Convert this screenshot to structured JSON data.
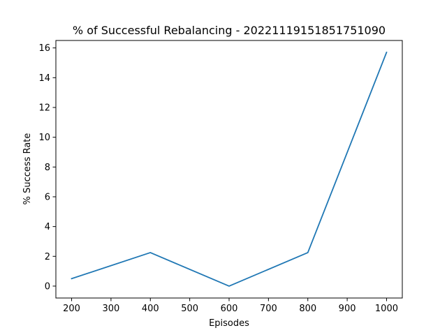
{
  "chart_data": {
    "type": "line",
    "title": "% of Successful Rebalancing - 20221119151851751090",
    "xlabel": "Episodes",
    "ylabel": "% Success Rate",
    "x": [
      200,
      400,
      600,
      800,
      1000
    ],
    "series": [
      {
        "values": [
          0.5,
          2.25,
          0.0,
          2.25,
          15.7
        ],
        "color": "#1f77b4"
      }
    ],
    "xlim": [
      160,
      1040
    ],
    "ylim": [
      -0.8,
      16.5
    ],
    "xticks": [
      200,
      300,
      400,
      500,
      600,
      700,
      800,
      900,
      1000
    ],
    "yticks": [
      0,
      2,
      4,
      6,
      8,
      10,
      12,
      14,
      16
    ],
    "grid": false,
    "legend": "none"
  }
}
